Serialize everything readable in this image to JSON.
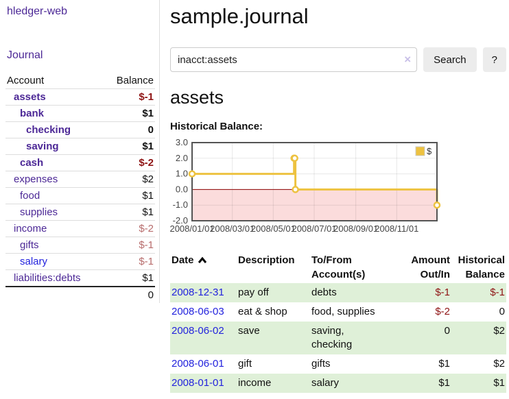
{
  "colors": {
    "link_purple": "#4c2896",
    "link_blue": "#2222dd",
    "negative": "#8e1313",
    "negative_muted": "#b76c6c",
    "row_shade_green": "#dff0d8",
    "chart_line_gold": "#edc240",
    "chart_negative_bg": "#fbdcdc",
    "chart_zero_line": "#8b0000",
    "button_gray": "#ececec"
  },
  "sidebar": {
    "app_title": "hledger-web",
    "journal_link": "Journal",
    "accounts_table": {
      "account_header": "Account",
      "balance_header": "Balance",
      "rows": [
        {
          "name": "assets",
          "indent": 1,
          "bold": true,
          "balance": "$-1",
          "balance_color": "negative"
        },
        {
          "name": "bank",
          "indent": 2,
          "bold": true,
          "balance": "$1",
          "balance_color": "normal"
        },
        {
          "name": "checking",
          "indent": 3,
          "bold": true,
          "balance": "0",
          "balance_color": "normal"
        },
        {
          "name": "saving",
          "indent": 3,
          "bold": true,
          "balance": "$1",
          "balance_color": "normal"
        },
        {
          "name": "cash",
          "indent": 2,
          "bold": true,
          "balance": "$-2",
          "balance_color": "negative"
        },
        {
          "name": "expenses",
          "indent": 1,
          "bold": false,
          "balance": "$2",
          "balance_color": "normal"
        },
        {
          "name": "food",
          "indent": 2,
          "bold": false,
          "balance": "$1",
          "balance_color": "normal"
        },
        {
          "name": "supplies",
          "indent": 2,
          "bold": false,
          "balance": "$1",
          "balance_color": "normal"
        },
        {
          "name": "income",
          "indent": 1,
          "bold": false,
          "balance": "$-2",
          "balance_color": "negative-muted"
        },
        {
          "name": "gifts",
          "indent": 2,
          "bold": false,
          "balance": "$-1",
          "balance_color": "negative-muted"
        },
        {
          "name": "salary",
          "indent": 2,
          "bold": false,
          "balance": "$-1",
          "balance_color": "negative-muted",
          "link_color": "blue"
        },
        {
          "name": "liabilities:debts",
          "indent": 1,
          "bold": false,
          "balance": "$1",
          "balance_color": "normal"
        }
      ],
      "total": "0"
    }
  },
  "main": {
    "title": "sample.journal",
    "search": {
      "value": "inacct:assets",
      "clear_icon": "×",
      "search_button": "Search",
      "help_button": "?"
    },
    "account_heading": "assets",
    "chart_title": "Historical Balance:"
  },
  "chart_data": {
    "type": "line",
    "step": true,
    "title": "Historical Balance:",
    "series": [
      {
        "name": "$",
        "color": "#edc240",
        "points": [
          [
            "2008-01-01",
            1
          ],
          [
            "2008-06-01",
            2
          ],
          [
            "2008-06-02",
            2
          ],
          [
            "2008-06-03",
            0
          ],
          [
            "2008-12-31",
            -1
          ]
        ]
      }
    ],
    "x_range": [
      "2008-01-01",
      "2008-12-31"
    ],
    "x_ticks": [
      "2008/01/01",
      "2008/03/01",
      "2008/05/01",
      "2008/07/01",
      "2008/09/01",
      "2008/11/01"
    ],
    "y_ticks": [
      3.0,
      2.0,
      1.0,
      0.0,
      -1.0,
      -2.0
    ],
    "ylim": [
      -2,
      3
    ],
    "grid": true,
    "legend": {
      "label": "$",
      "position": "top-right"
    },
    "negative_region_color": "#fbdcdc",
    "zero_line_color": "#8b0000"
  },
  "transactions_table": {
    "headers": {
      "date": "Date",
      "description": "Description",
      "accounts_line1": "To/From",
      "accounts_line2": "Account(s)",
      "amount_line1": "Amount",
      "amount_line2": "Out/In",
      "balance_line1": "Historical",
      "balance_line2": "Balance"
    },
    "rows": [
      {
        "date": "2008-12-31",
        "description": "pay off",
        "accounts": "debts",
        "amount": "$-1",
        "amount_negative": true,
        "balance": "$-1",
        "balance_negative": true,
        "shaded": true
      },
      {
        "date": "2008-06-03",
        "description": "eat & shop",
        "accounts": "food, supplies",
        "amount": "$-2",
        "amount_negative": true,
        "balance": "0",
        "balance_negative": false,
        "shaded": false
      },
      {
        "date": "2008-06-02",
        "description": "save",
        "accounts": "saving,\nchecking",
        "amount": "0",
        "amount_negative": false,
        "balance": "$2",
        "balance_negative": false,
        "shaded": true
      },
      {
        "date": "2008-06-01",
        "description": "gift",
        "accounts": "gifts",
        "amount": "$1",
        "amount_negative": false,
        "balance": "$2",
        "balance_negative": false,
        "shaded": false
      },
      {
        "date": "2008-01-01",
        "description": "income",
        "accounts": "salary",
        "amount": "$1",
        "amount_negative": false,
        "balance": "$1",
        "balance_negative": false,
        "shaded": true
      }
    ]
  }
}
